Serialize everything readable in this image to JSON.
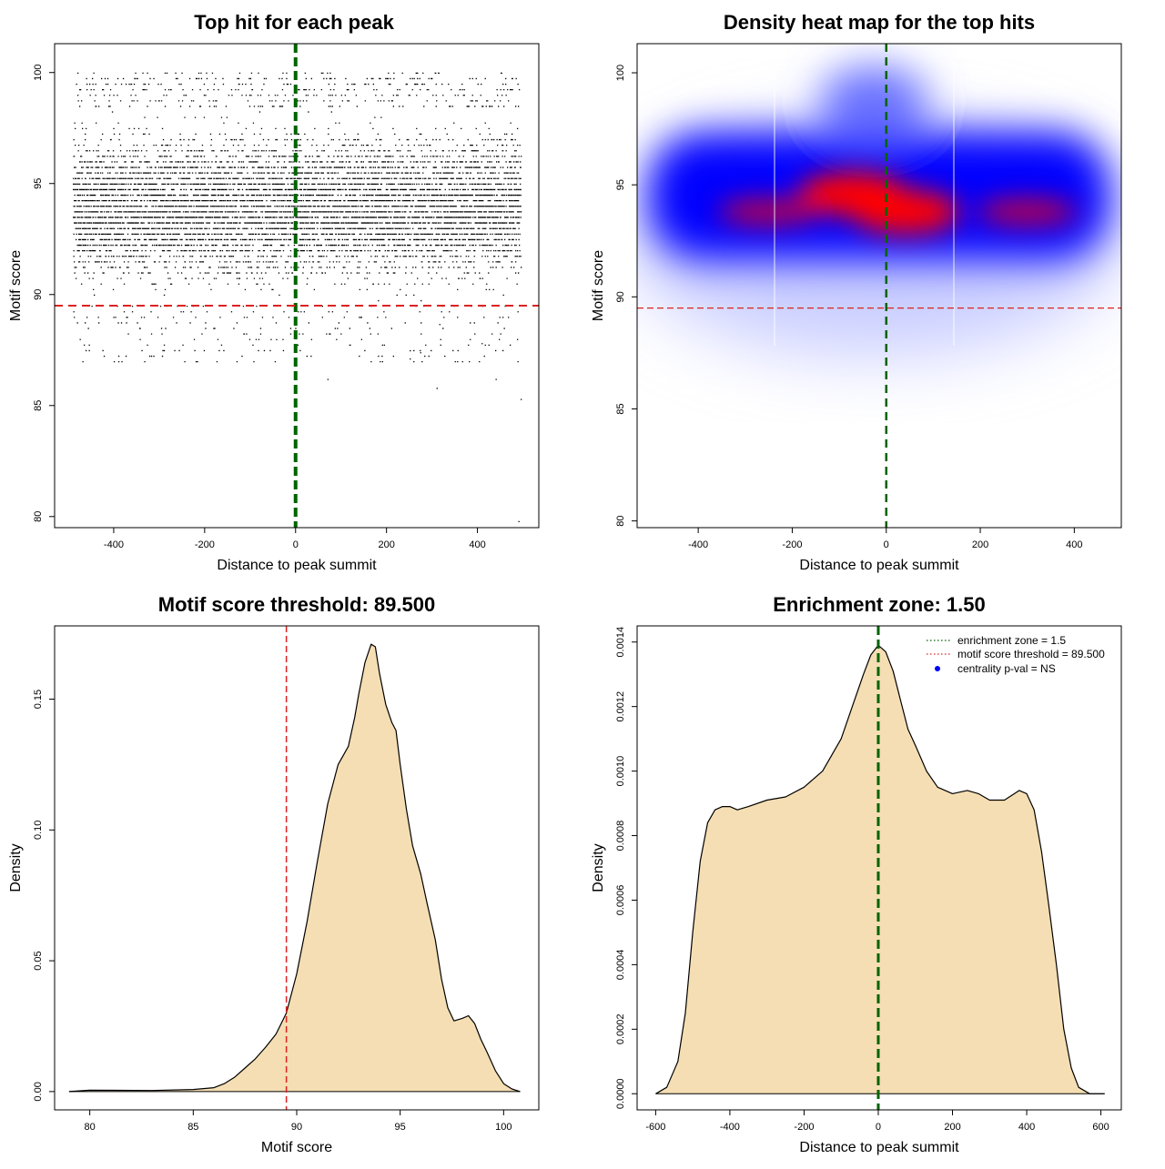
{
  "chart_data": [
    {
      "type": "scatter",
      "title": "Top hit for each peak",
      "xlabel": "Distance to peak summit",
      "ylabel": "Motif score",
      "xlim": [
        -530,
        535
      ],
      "ylim": [
        79.5,
        101.3
      ],
      "xticks": [
        -400,
        -200,
        0,
        200,
        400
      ],
      "yticks": [
        80,
        85,
        90,
        95,
        100
      ],
      "point_color": "#000000",
      "point_count_estimate": 9000,
      "point_x_range": [
        -490,
        495
      ],
      "point_score_distribution": {
        "mode": 94,
        "min": 79.8,
        "max": 100
      },
      "outlier_points": [
        {
          "x": 490,
          "y": 79.8
        },
        {
          "x": 495,
          "y": 85.3
        },
        {
          "x": 70,
          "y": 86.2
        },
        {
          "x": 310,
          "y": 85.8
        },
        {
          "x": -390,
          "y": 87.0
        },
        {
          "x": 440,
          "y": 86.2
        }
      ],
      "reference_lines": [
        {
          "orientation": "vertical",
          "value": 0,
          "color": "#006400",
          "style": "dashed"
        },
        {
          "orientation": "horizontal",
          "value": 89.5,
          "color": "#dd2222",
          "style": "dashed"
        }
      ]
    },
    {
      "type": "heatmap",
      "title": "Density heat map for the top hits",
      "xlabel": "Distance to peak summit",
      "ylabel": "Motif score",
      "xlim": [
        -530,
        500
      ],
      "ylim": [
        79.7,
        101.3
      ],
      "xticks": [
        -400,
        -200,
        0,
        200,
        400
      ],
      "yticks": [
        80,
        85,
        90,
        95,
        100
      ],
      "colorscale": [
        "#ffffff",
        "#0000ff",
        "#ff0000"
      ],
      "hotspots": [
        {
          "x": 40,
          "y": 93.8,
          "level": "high"
        },
        {
          "x": -70,
          "y": 94.6,
          "level": "high"
        },
        {
          "x": -250,
          "y": 93.8,
          "level": "medium"
        },
        {
          "x": 300,
          "y": 93.8,
          "level": "medium"
        }
      ],
      "reference_lines": [
        {
          "orientation": "vertical",
          "value": 0,
          "color": "#006400",
          "style": "dashed"
        },
        {
          "orientation": "horizontal",
          "value": 89.5,
          "color": "#dd2222",
          "style": "dashed"
        }
      ]
    },
    {
      "type": "area",
      "title": "Motif score threshold: 89.500",
      "xlabel": "Motif score",
      "ylabel": "Density",
      "xlim": [
        78.3,
        101.7
      ],
      "ylim": [
        -0.007,
        0.178
      ],
      "xticks": [
        80,
        85,
        90,
        95,
        100
      ],
      "yticks": [
        0.0,
        0.05,
        0.1,
        0.15
      ],
      "ytick_labels": [
        "0.00",
        "0.05",
        "0.10",
        "0.15"
      ],
      "fill_color": "#f5deb3",
      "line_color": "#000000",
      "x": [
        79.0,
        80.0,
        83.0,
        85.0,
        86.0,
        86.5,
        87.0,
        87.5,
        88.0,
        88.5,
        89.0,
        89.5,
        90.0,
        90.5,
        91.0,
        91.5,
        92.0,
        92.5,
        92.8,
        93.0,
        93.3,
        93.6,
        93.8,
        94.0,
        94.3,
        94.6,
        94.8,
        95.0,
        95.3,
        95.6,
        96.0,
        96.3,
        96.7,
        97.0,
        97.3,
        97.6,
        98.0,
        98.3,
        98.6,
        98.9,
        99.2,
        99.6,
        100.0,
        100.4,
        100.8
      ],
      "values": [
        0.0,
        0.0005,
        0.0004,
        0.0008,
        0.0015,
        0.003,
        0.0055,
        0.009,
        0.0125,
        0.017,
        0.022,
        0.03,
        0.045,
        0.065,
        0.088,
        0.11,
        0.125,
        0.132,
        0.143,
        0.152,
        0.164,
        0.171,
        0.17,
        0.16,
        0.148,
        0.141,
        0.138,
        0.125,
        0.108,
        0.094,
        0.083,
        0.072,
        0.058,
        0.043,
        0.032,
        0.027,
        0.028,
        0.029,
        0.026,
        0.02,
        0.015,
        0.008,
        0.003,
        0.001,
        0.0
      ],
      "reference_lines": [
        {
          "orientation": "vertical",
          "value": 89.5,
          "color": "#dd2222",
          "style": "dashed"
        }
      ]
    },
    {
      "type": "area",
      "title": "Enrichment zone: 1.50",
      "xlabel": "Distance to peak summit",
      "ylabel": "Density",
      "xlim": [
        -650,
        655
      ],
      "ylim": [
        -5e-05,
        0.00145
      ],
      "xticks": [
        -600,
        -400,
        -200,
        0,
        200,
        400,
        600
      ],
      "yticks": [
        0.0,
        0.0002,
        0.0004,
        0.0006,
        0.0008,
        0.001,
        0.0012,
        0.0014
      ],
      "ytick_labels": [
        "0.0000",
        "0.0002",
        "0.0004",
        "0.0006",
        "0.0008",
        "0.0010",
        "0.0012",
        "0.0014"
      ],
      "fill_color": "#f5deb3",
      "line_color": "#000000",
      "x": [
        -600,
        -570,
        -540,
        -520,
        -500,
        -480,
        -460,
        -440,
        -420,
        -400,
        -380,
        -350,
        -300,
        -250,
        -200,
        -150,
        -100,
        -70,
        -40,
        -20,
        0,
        20,
        40,
        60,
        80,
        100,
        130,
        160,
        200,
        240,
        270,
        300,
        340,
        380,
        400,
        420,
        440,
        460,
        480,
        500,
        520,
        540,
        570,
        610
      ],
      "values": [
        0.0,
        2e-05,
        0.0001,
        0.00025,
        0.0005,
        0.00072,
        0.00084,
        0.00088,
        0.00089,
        0.00089,
        0.00088,
        0.00089,
        0.00091,
        0.00092,
        0.00095,
        0.001,
        0.0011,
        0.0012,
        0.0013,
        0.00136,
        0.00139,
        0.00137,
        0.00131,
        0.00122,
        0.00113,
        0.00108,
        0.001,
        0.00095,
        0.00093,
        0.00094,
        0.00093,
        0.00091,
        0.00091,
        0.00094,
        0.00093,
        0.00088,
        0.00075,
        0.00058,
        0.0004,
        0.0002,
        8e-05,
        2e-05,
        0.0,
        0.0
      ],
      "reference_lines": [
        {
          "orientation": "vertical",
          "value": 0,
          "color": "#006400",
          "style": "dashed"
        }
      ],
      "legend": {
        "position": "top-right",
        "entries": [
          {
            "label": "enrichment zone = 1.5",
            "color": "#006400",
            "symbol": "dotted-line"
          },
          {
            "label": "motif score threshold = 89.500",
            "color": "#dd2222",
            "symbol": "dotted-line"
          },
          {
            "label": "centrality p-val = NS",
            "color": "#0000ff",
            "symbol": "dot"
          }
        ]
      }
    }
  ]
}
